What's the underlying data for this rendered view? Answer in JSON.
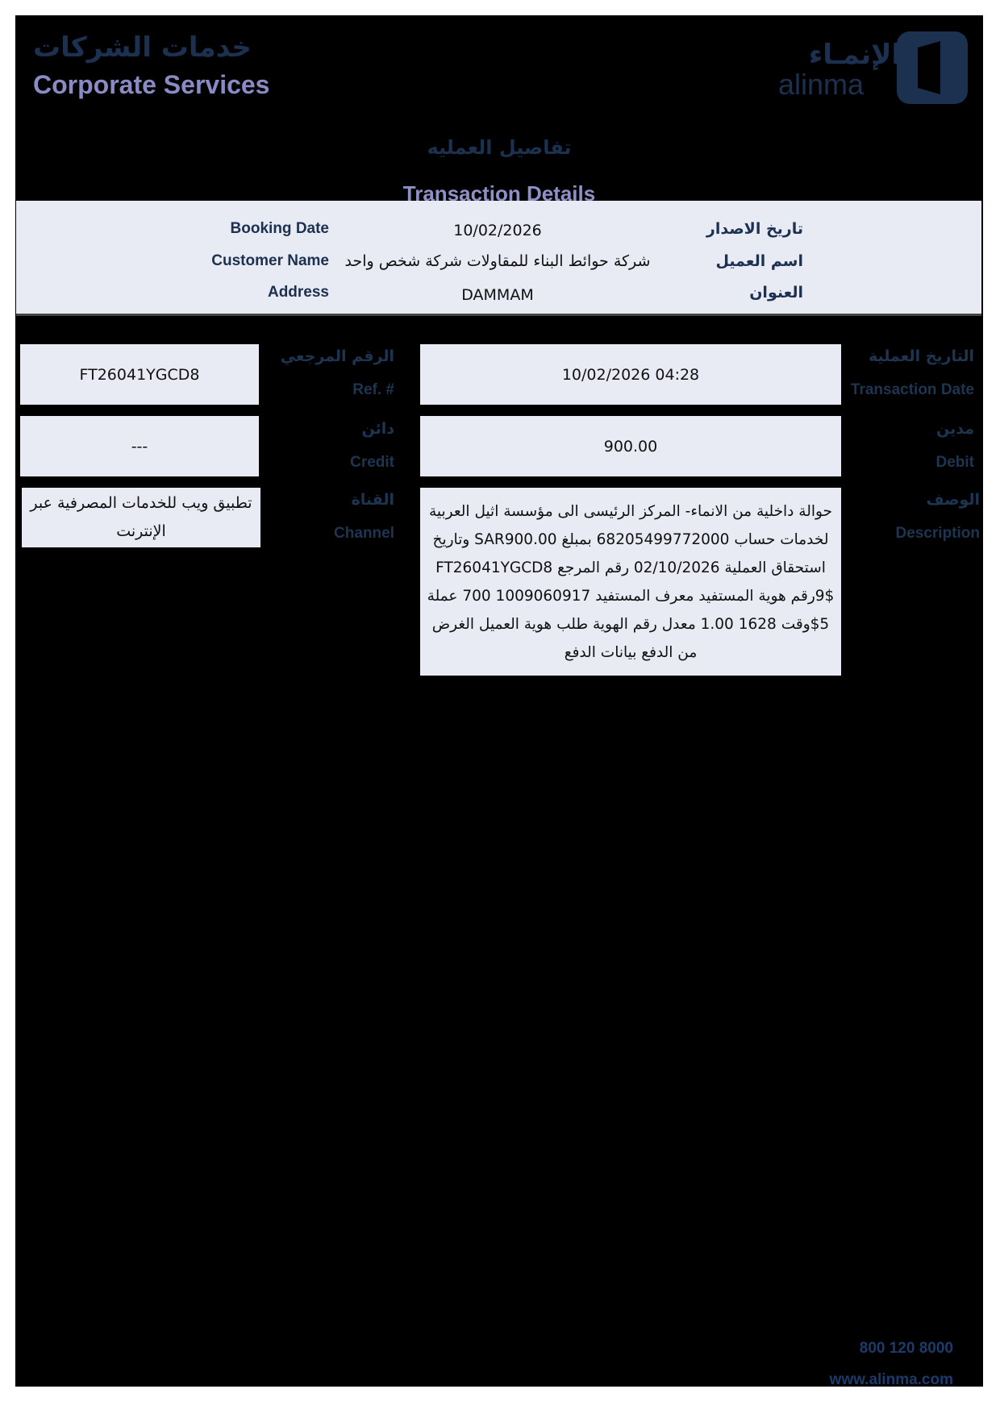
{
  "header": {
    "brand_ar": "خدمات الشركات",
    "brand_en": "Corporate Services",
    "logo_ar": "الإنمـاء",
    "logo_en": "alinma"
  },
  "title": {
    "ar": "تفاصيل العمليه",
    "en": "Transaction Details"
  },
  "info": {
    "booking_date": {
      "label": "Booking Date",
      "value": "10/02/2026",
      "label_ar": "تاريخ الاصدار"
    },
    "customer_name": {
      "label": "Customer Name",
      "value": "شركة حوائط البناء للمقاولات شركة شخص واحد",
      "label_ar": "اسم العميل"
    },
    "address": {
      "label": "Address",
      "value": "DAMMAM",
      "label_ar": "العنوان"
    }
  },
  "fields": {
    "ref": {
      "label_ar": "الرقم المرجعي",
      "label": "Ref. #",
      "value": "FT26041YGCD8"
    },
    "transaction_date": {
      "label_ar": "التاريخ العملية",
      "label": "Transaction Date",
      "value": "10/02/2026 04:28"
    },
    "credit": {
      "label_ar": "دائن",
      "label": "Credit",
      "value": "---"
    },
    "debit": {
      "label_ar": "مدين",
      "label": "Debit",
      "value": "900.00"
    },
    "channel": {
      "label_ar": "القناة",
      "label": "Channel",
      "value": "تطبيق ويب للخدمات المصرفية عبر الإنترنت"
    },
    "description": {
      "label_ar": "الوصف",
      "label": "Description",
      "value": "حوالة داخلية من الانماء- المركز الرئيسى الى مؤسسة اثيل العربية لخدمات حساب 68205499772000 بمبلغ SAR900.00 وتاريخ استحقاق العملية 02/10/2026 رقم المرجع FT26041YGCD8 9$رقم هوية المستفيد معرف المستفيد 1009060917 700 عملة 5$وقت 1628 1.00 معدل رقم الهوية طلب هوية العميل الغرض من الدفع بيانات الدفع"
    }
  },
  "footer": {
    "phone": "800 120 8000",
    "website": "www.alinma.com"
  },
  "colors": {
    "navy": "#1c3050",
    "lavender": "#8a8ac4",
    "panel": "#e8eaf4"
  }
}
